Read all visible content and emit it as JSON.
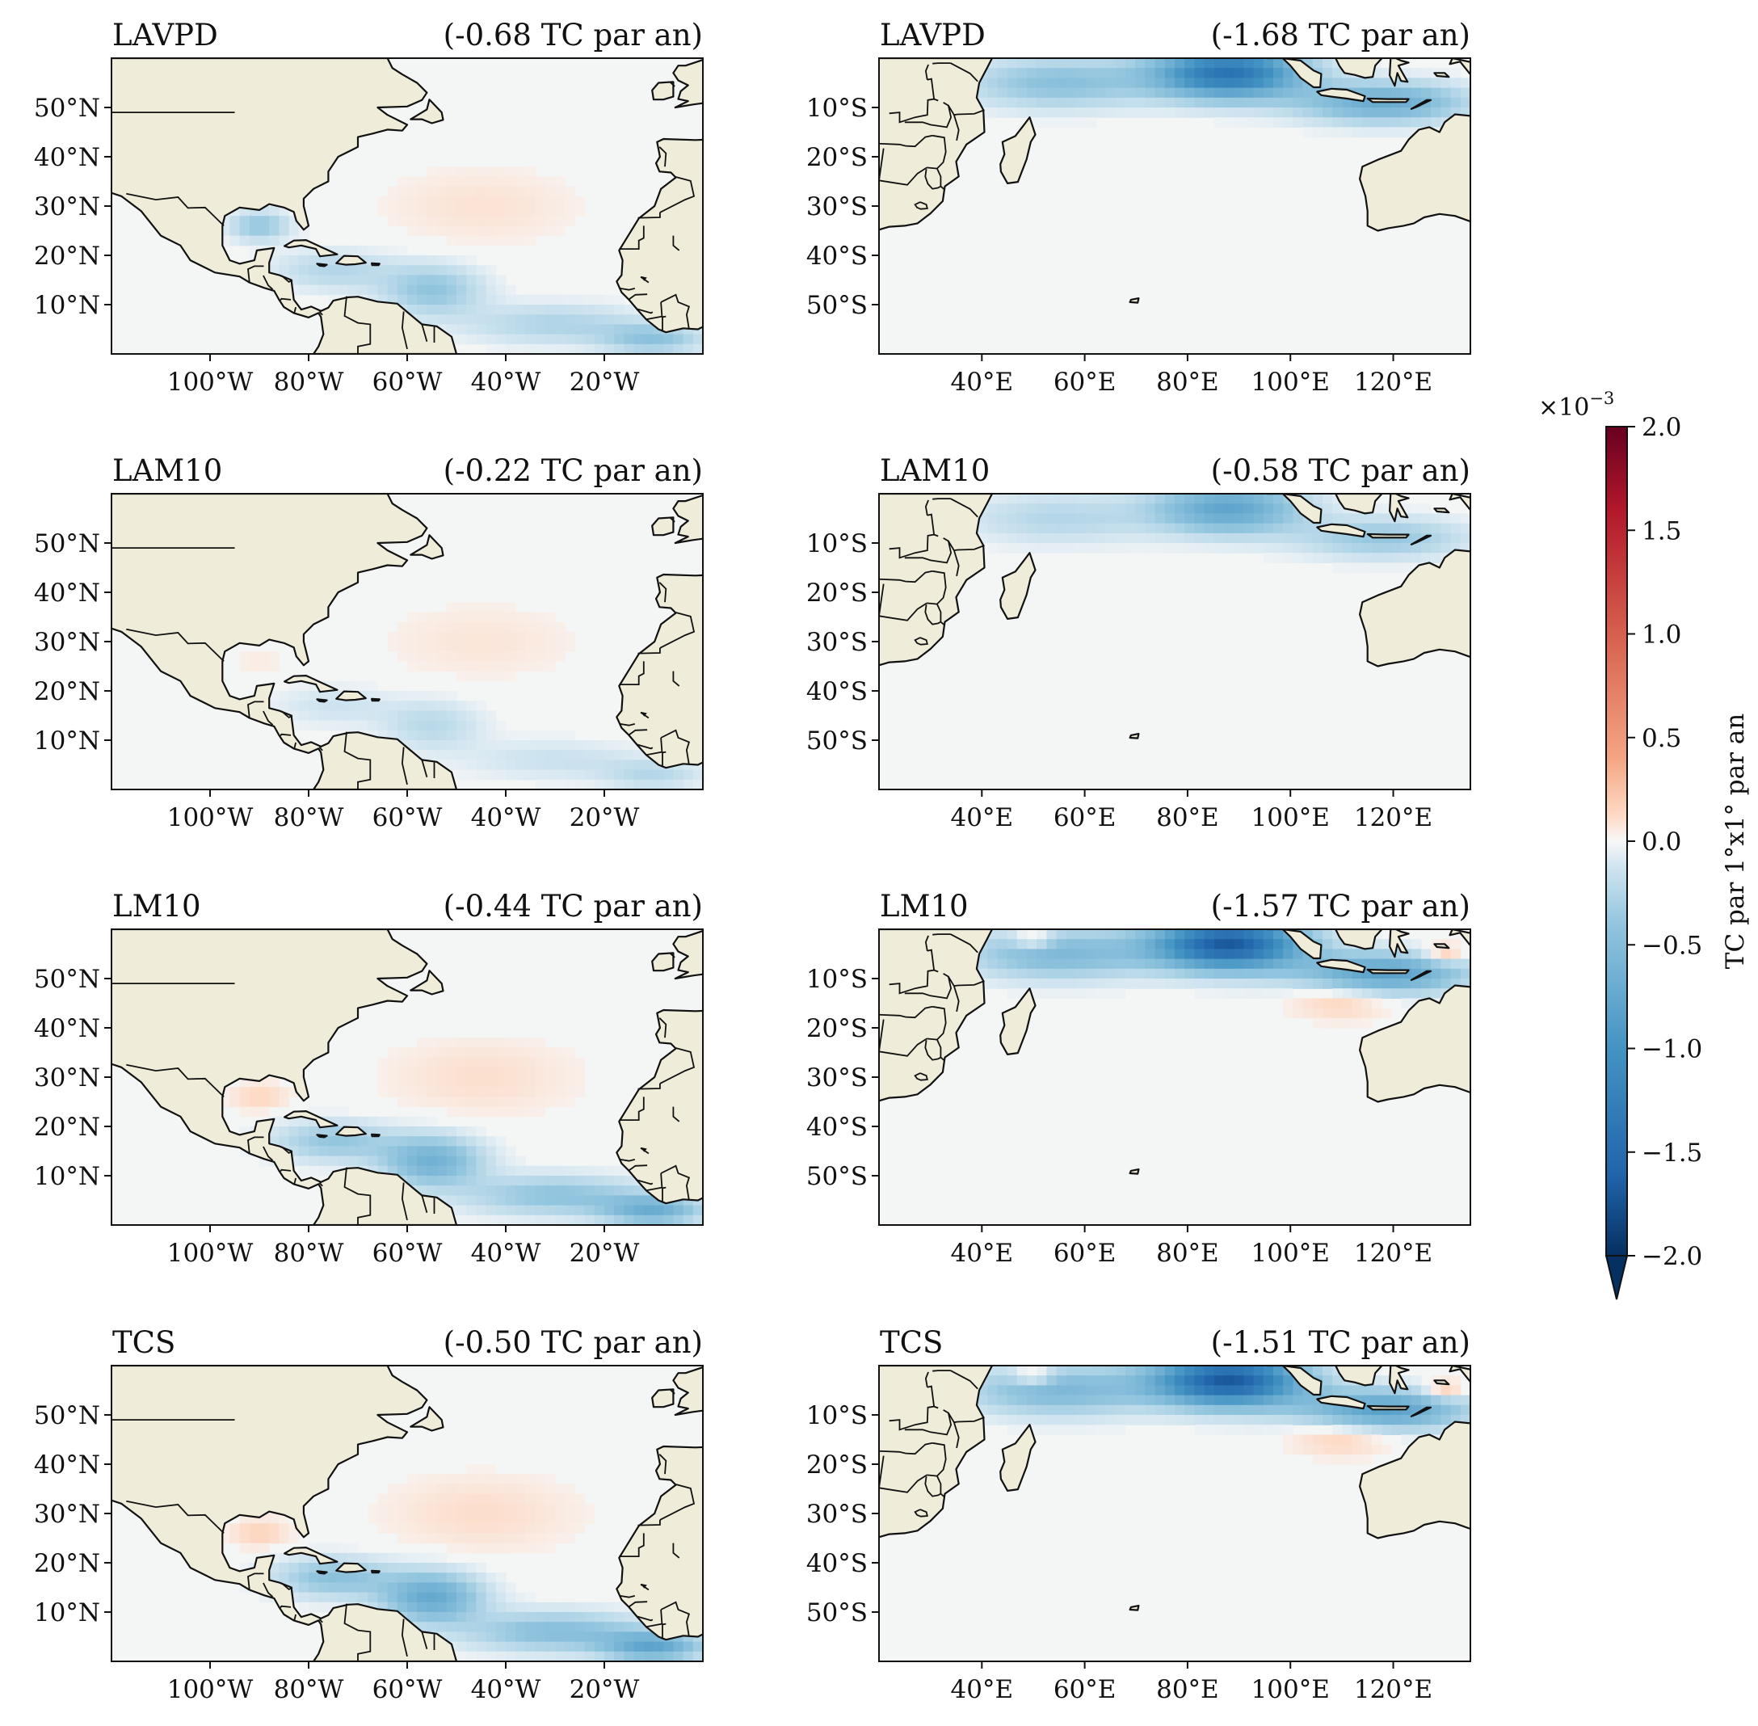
{
  "colors": {
    "land": "#efecd9",
    "ocean_neutral": "#f4f6f6",
    "coast": "#111111",
    "cmap_low": "#053061",
    "cmap_mid": "#f7f7f7",
    "cmap_high": "#67001f"
  },
  "panels": [
    {
      "region": "north_atlantic",
      "model": "LAVPD",
      "trend": "(-0.68 TC par an)",
      "intensity": 0.45
    },
    {
      "region": "south_indian",
      "model": "LAVPD",
      "trend": "(-1.68 TC par an)",
      "intensity": 1.0
    },
    {
      "region": "north_atlantic",
      "model": "LAM10",
      "trend": "(-0.22 TC par an)",
      "intensity": 0.25
    },
    {
      "region": "south_indian",
      "model": "LAM10",
      "trend": "(-0.58 TC par an)",
      "intensity": 0.55
    },
    {
      "region": "north_atlantic",
      "model": "LM10",
      "trend": "(-0.44 TC par an)",
      "intensity": 0.7
    },
    {
      "region": "south_indian",
      "model": "LM10",
      "trend": "(-1.57 TC par an)",
      "intensity": 1.2
    },
    {
      "region": "north_atlantic",
      "model": "TCS",
      "trend": "(-0.50 TC par an)",
      "intensity": 0.8
    },
    {
      "region": "south_indian",
      "model": "TCS",
      "trend": "(-1.51 TC par an)",
      "intensity": 1.2
    }
  ],
  "axes": {
    "north_atlantic": {
      "lon_range": [
        -120,
        0
      ],
      "lat_range": [
        0,
        60
      ],
      "x_ticks": [
        {
          "value": -100,
          "label": "100°W"
        },
        {
          "value": -80,
          "label": "80°W"
        },
        {
          "value": -60,
          "label": "60°W"
        },
        {
          "value": -40,
          "label": "40°W"
        },
        {
          "value": -20,
          "label": "20°W"
        }
      ],
      "y_ticks": [
        {
          "value": 50,
          "label": "50°N"
        },
        {
          "value": 40,
          "label": "40°N"
        },
        {
          "value": 30,
          "label": "30°N"
        },
        {
          "value": 20,
          "label": "20°N"
        },
        {
          "value": 10,
          "label": "10°N"
        }
      ]
    },
    "south_indian": {
      "lon_range": [
        20,
        135
      ],
      "lat_range": [
        -60,
        0
      ],
      "x_ticks": [
        {
          "value": 40,
          "label": "40°E"
        },
        {
          "value": 60,
          "label": "60°E"
        },
        {
          "value": 80,
          "label": "80°E"
        },
        {
          "value": 100,
          "label": "100°E"
        },
        {
          "value": 120,
          "label": "120°E"
        }
      ],
      "y_ticks": [
        {
          "value": -10,
          "label": "10°S"
        },
        {
          "value": -20,
          "label": "20°S"
        },
        {
          "value": -30,
          "label": "30°S"
        },
        {
          "value": -40,
          "label": "40°S"
        },
        {
          "value": -50,
          "label": "50°S"
        }
      ]
    }
  },
  "colorbar": {
    "label": "TC par 1°x1° par an",
    "multiplier": "×10",
    "exponent": "−3",
    "range": [
      -2.0,
      2.0
    ],
    "extend": "min",
    "ticks": [
      {
        "value": 2.0,
        "label": "2.0"
      },
      {
        "value": 1.5,
        "label": "1.5"
      },
      {
        "value": 1.0,
        "label": "1.0"
      },
      {
        "value": 0.5,
        "label": "0.5"
      },
      {
        "value": 0.0,
        "label": "0.0"
      },
      {
        "value": -0.5,
        "label": "−0.5"
      },
      {
        "value": -1.0,
        "label": "−1.0"
      },
      {
        "value": -1.5,
        "label": "−1.5"
      },
      {
        "value": -2.0,
        "label": "−2.0"
      }
    ]
  }
}
